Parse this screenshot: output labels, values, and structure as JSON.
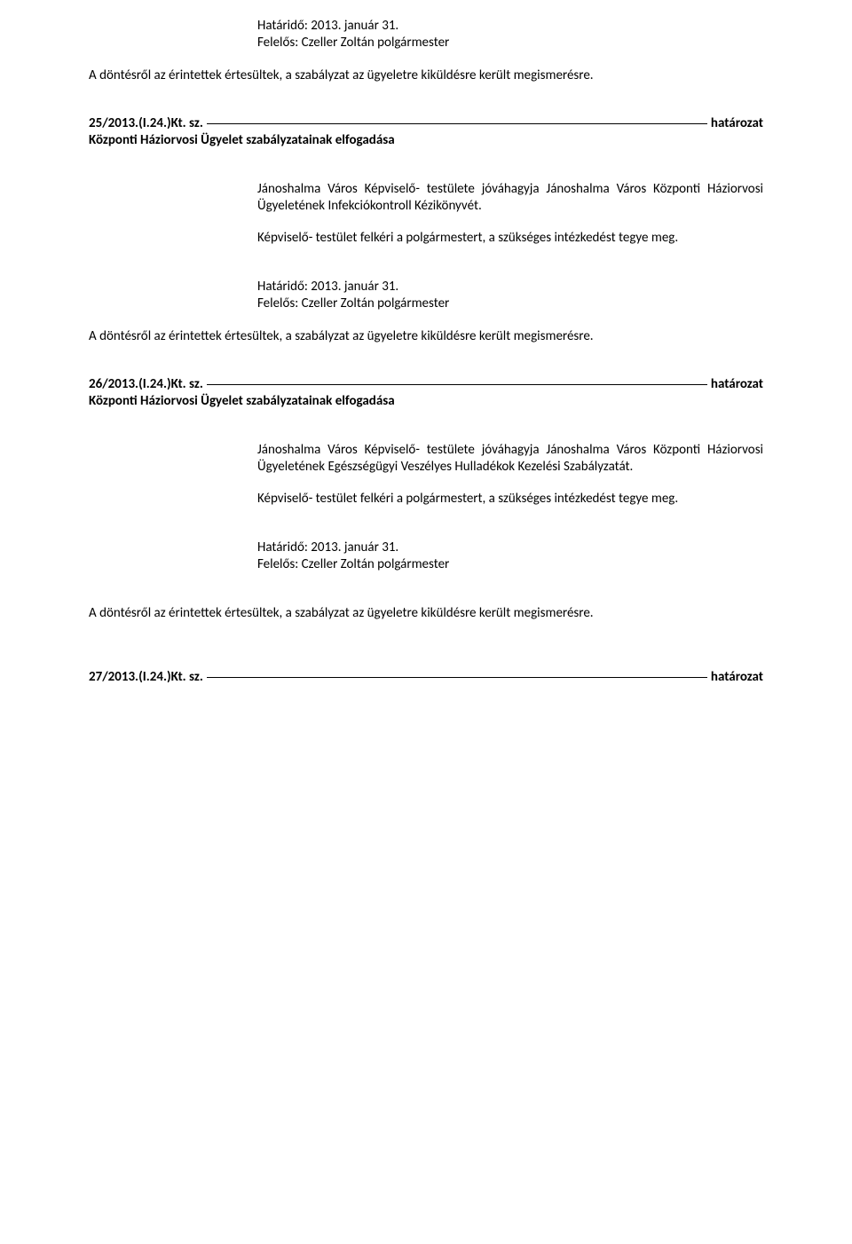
{
  "text_color": "#000000",
  "background_color": "#ffffff",
  "font_family": "Calibri, Arial, sans-serif",
  "font_size_pt": 11,
  "block1": {
    "deadline_line": "Határidő: 2013. január 31.",
    "responsible_line": "Felelős: Czeller Zoltán polgármester",
    "notice_para": "A döntésről az érintettek értesültek, a szabályzat az ügyeletre kiküldésre került megismerésre."
  },
  "section25": {
    "ref": "25/2013.(I.24.)Kt. sz.",
    "label": "határozat",
    "subtitle": "Központi Háziorvosi Ügyelet szabályzatainak elfogadása",
    "body_para": "Jánoshalma Város Képviselő- testülete jóváhagyja Jánoshalma Város Központi Háziorvosi Ügyeletének Infekciókontroll Kézikönyvét.",
    "instruct_para": "Képviselő- testület felkéri a polgármestert, a szükséges intézkedést tegye meg.",
    "deadline_line": "Határidő: 2013. január 31.",
    "responsible_line": "Felelős: Czeller Zoltán polgármester",
    "notice_para": "A döntésről az érintettek értesültek, a szabályzat az ügyeletre kiküldésre került megismerésre."
  },
  "section26": {
    "ref": "26/2013.(I.24.)Kt. sz.",
    "label": "határozat",
    "subtitle": "Központi Háziorvosi Ügyelet szabályzatainak elfogadása",
    "body_para": "Jánoshalma Város Képviselő- testülete jóváhagyja Jánoshalma Város Központi Háziorvosi Ügyeletének Egészségügyi Veszélyes Hulladékok Kezelési Szabályzatát.",
    "instruct_para": "Képviselő- testület felkéri a polgármestert, a szükséges intézkedést tegye meg.",
    "deadline_line": "Határidő: 2013. január 31.",
    "responsible_line": "Felelős: Czeller Zoltán polgármester",
    "notice_para": "A döntésről az érintettek értesültek, a szabályzat az ügyeletre kiküldésre került megismerésre."
  },
  "section27": {
    "ref": "27/2013.(I.24.)Kt. sz.",
    "label": "határozat"
  }
}
